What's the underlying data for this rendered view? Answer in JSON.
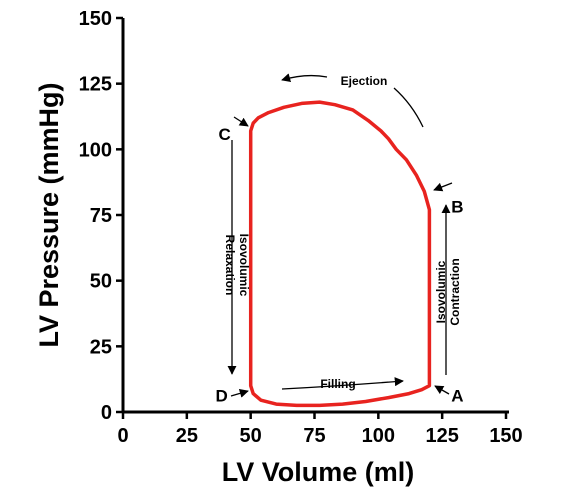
{
  "chart_data": {
    "type": "line",
    "title": "",
    "xlabel": "LV Volume (ml)",
    "ylabel": "LV Pressure (mmHg)",
    "xlim": [
      0,
      150
    ],
    "ylim": [
      0,
      150
    ],
    "xticks": [
      0,
      25,
      50,
      75,
      100,
      125,
      150
    ],
    "yticks": [
      0,
      25,
      50,
      75,
      100,
      125,
      150
    ],
    "grid": false,
    "series": [
      {
        "color": "#e8231f",
        "x": [
          120,
          120,
          118,
          115,
          111,
          107,
          104,
          101,
          96,
          90,
          83,
          77,
          70,
          63,
          57,
          53,
          51,
          50,
          50,
          50,
          51,
          54,
          60,
          68,
          77,
          86,
          95,
          104,
          112,
          117,
          120
        ],
        "y": [
          10,
          77,
          84,
          90,
          96,
          100,
          104,
          107,
          111,
          115,
          117,
          118,
          117.5,
          116,
          114,
          112,
          110,
          107,
          60,
          10,
          7,
          4.5,
          3,
          2.5,
          2.5,
          3,
          4,
          5.5,
          7,
          8.5,
          10
        ]
      }
    ],
    "points": [
      {
        "label": "A",
        "x": 120,
        "y": 10
      },
      {
        "label": "B",
        "x": 120,
        "y": 77
      },
      {
        "label": "C",
        "x": 50,
        "y": 107
      },
      {
        "label": "D",
        "x": 50,
        "y": 10
      }
    ],
    "annotations": {
      "ejection": "Ejection",
      "filling": "Filling",
      "isovolumic_relaxation": [
        "Isovolumic",
        "Relaxation"
      ],
      "isovolumic_contraction": [
        "Isovolumic",
        "Contraction"
      ]
    }
  }
}
